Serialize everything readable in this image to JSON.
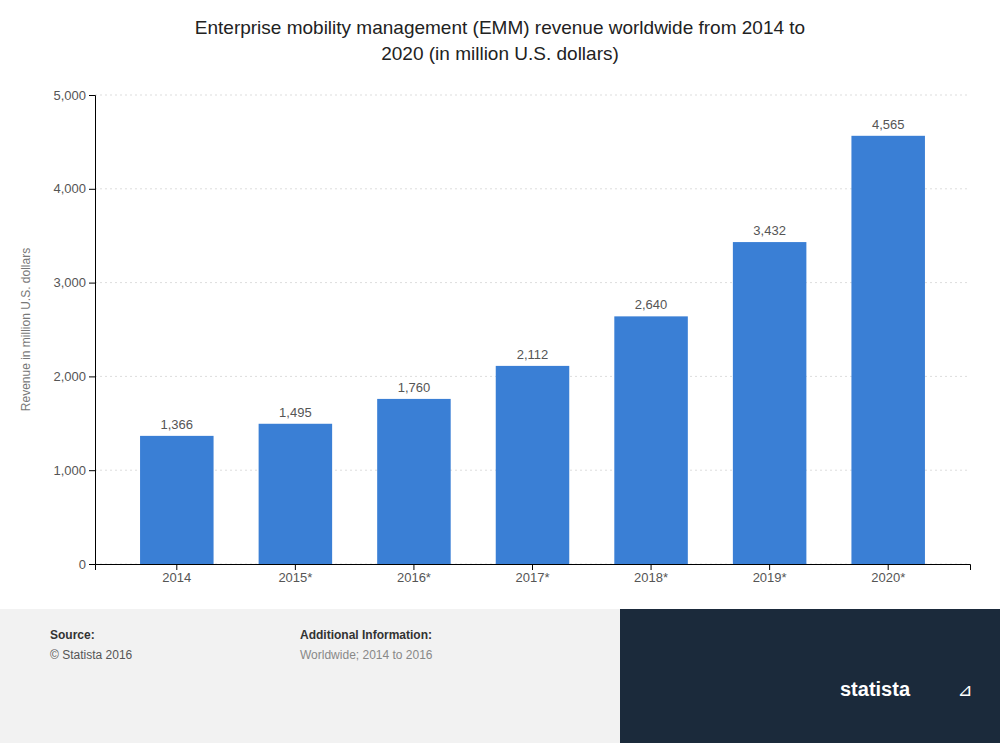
{
  "chart_data": {
    "type": "bar",
    "title": "Enterprise mobility management (EMM) revenue worldwide from 2014 to\n2020 (in million U.S. dollars)",
    "categories": [
      "2014",
      "2015*",
      "2016*",
      "2017*",
      "2018*",
      "2019*",
      "2020*"
    ],
    "values": [
      1366,
      1495,
      1760,
      2112,
      2640,
      3432,
      4565
    ],
    "value_labels": [
      "1,366",
      "1,495",
      "1,760",
      "2,112",
      "2,640",
      "3,432",
      "4,565"
    ],
    "color": "#3a7fd5",
    "ylabel": "Revenue in million U.S. dollars",
    "ylim": [
      0,
      5000
    ],
    "yticks": [
      0,
      {
        "value": 1000,
        "label": "1,000"
      },
      {
        "value": 2000,
        "label": "2,000"
      },
      {
        "value": 3000,
        "label": "3,000"
      },
      {
        "value": 4000,
        "label": "4,000"
      },
      {
        "value": 5000,
        "label": "5,000"
      }
    ],
    "grid": true,
    "data_labels": true,
    "annotations": [
      "Source:",
      "© Statista 2016",
      "Additional Information:",
      "Worldwide; 2014 to 2016",
      "statista",
      "⊿"
    ]
  }
}
